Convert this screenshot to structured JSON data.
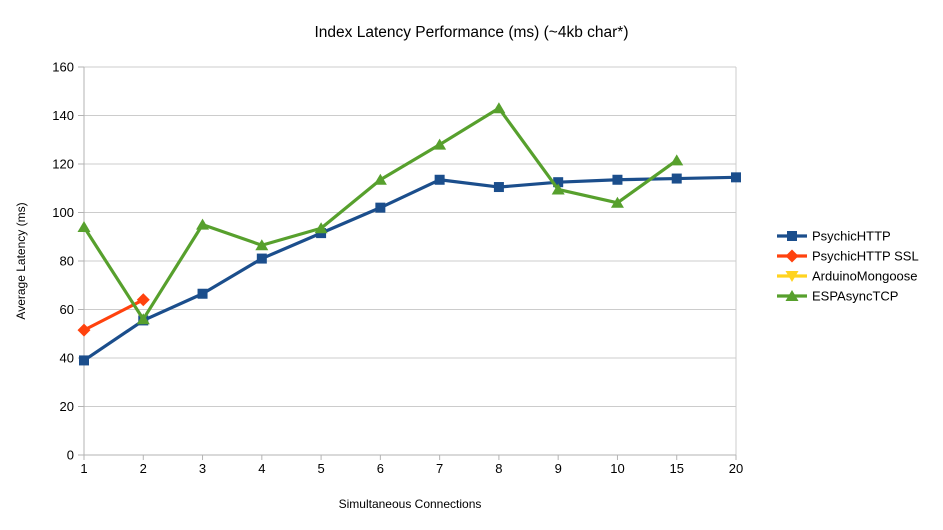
{
  "chart_data": {
    "type": "line",
    "title": "Index Latency Performance (ms) (~4kb char*)",
    "xlabel": "Simultaneous Connections",
    "ylabel": "Average Latency (ms)",
    "categories": [
      "1",
      "2",
      "3",
      "4",
      "5",
      "6",
      "7",
      "8",
      "9",
      "10",
      "15",
      "20"
    ],
    "ylim": [
      0,
      160
    ],
    "ytick_step": 20,
    "ytick_labels": [
      "0",
      "20",
      "40",
      "60",
      "80",
      "100",
      "120",
      "140",
      "160"
    ],
    "grid": true,
    "legend_position": "right",
    "series": [
      {
        "name": "PsychicHTTP",
        "color": "#1b4e8c",
        "marker": "square",
        "values": [
          39,
          55.5,
          66.5,
          81,
          91.5,
          102,
          113.5,
          110.5,
          112.5,
          113.5,
          114,
          114.5
        ]
      },
      {
        "name": "PsychicHTTP SSL",
        "color": "#ff420e",
        "marker": "diamond",
        "values": [
          51.5,
          64,
          null,
          null,
          null,
          null,
          null,
          null,
          null,
          null,
          null,
          null
        ]
      },
      {
        "name": "ArduinoMongoose",
        "color": "#ffd320",
        "marker": "triangle-down",
        "values": [
          null,
          null,
          null,
          null,
          null,
          null,
          null,
          null,
          null,
          null,
          null,
          null
        ]
      },
      {
        "name": "ESPAsyncTCP",
        "color": "#57a02d",
        "marker": "triangle-up",
        "values": [
          94,
          56,
          95,
          86.5,
          93.5,
          113.5,
          128,
          143,
          109.5,
          104,
          121.5,
          null
        ]
      }
    ],
    "colors": {
      "grid": "#cccccc",
      "axis": "#b3b3b3",
      "text": "#000000",
      "background": "#ffffff"
    }
  }
}
